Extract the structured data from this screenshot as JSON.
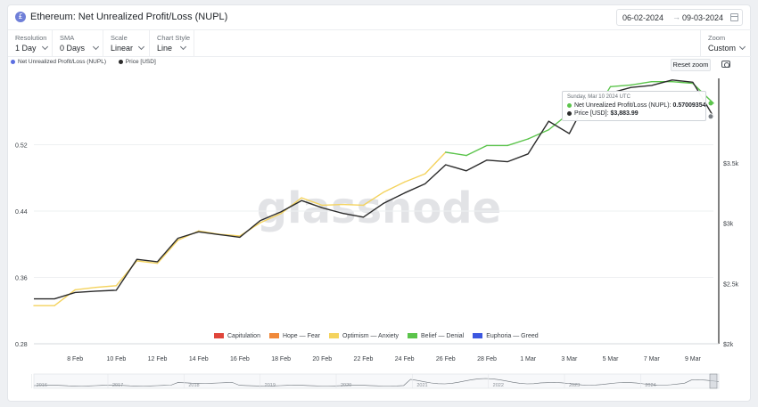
{
  "header": {
    "title": "Ethereum: Net Unrealized Profit/Loss (NUPL)",
    "logo_glyph": "£",
    "date_from": "06-02-2024",
    "date_arrow": "→",
    "date_to": "09-03-2024"
  },
  "toolbar": {
    "resolution": {
      "label": "Resolution",
      "value": "1 Day"
    },
    "sma": {
      "label": "SMA",
      "value": "0 Days"
    },
    "scale": {
      "label": "Scale",
      "value": "Linear"
    },
    "chart_style": {
      "label": "Chart Style",
      "value": "Line"
    },
    "zoom": {
      "label": "Zoom",
      "value": "Custom"
    }
  },
  "legend": {
    "nupl": {
      "label": "Net Unrealized Profit/Loss (NUPL)",
      "color": "#5b6ee1"
    },
    "price": {
      "label": "Price [USD]",
      "color": "#2b2b2b"
    }
  },
  "reset_zoom_label": "Reset zoom",
  "watermark": "glassnode",
  "tooltip": {
    "date": "Sunday, Mar 10 2024 UTC",
    "nupl_label": "Net Unrealized Profit/Loss (NUPL):",
    "nupl_value": "0.57009354",
    "price_label": "Price [USD]:",
    "price_value": "$3,883.99"
  },
  "zones": [
    {
      "label": "Capitulation",
      "color": "#e0453a"
    },
    {
      "label": "Hope — Fear",
      "color": "#f0893a"
    },
    {
      "label": "Optimism — Anxiety",
      "color": "#f4d35e"
    },
    {
      "label": "Belief — Denial",
      "color": "#5bc44b"
    },
    {
      "label": "Euphoria — Greed",
      "color": "#3c57e0"
    }
  ],
  "navigator": {
    "years": [
      "2016",
      "2017",
      "2018",
      "2019",
      "2020",
      "2021",
      "2022",
      "2023",
      "2024"
    ]
  },
  "chart_data": {
    "type": "line",
    "x": [
      "6 Feb",
      "7 Feb",
      "8 Feb",
      "9 Feb",
      "10 Feb",
      "11 Feb",
      "12 Feb",
      "13 Feb",
      "14 Feb",
      "15 Feb",
      "16 Feb",
      "17 Feb",
      "18 Feb",
      "19 Feb",
      "20 Feb",
      "21 Feb",
      "22 Feb",
      "23 Feb",
      "24 Feb",
      "25 Feb",
      "26 Feb",
      "27 Feb",
      "28 Feb",
      "29 Feb",
      "1 Mar",
      "2 Mar",
      "3 Mar",
      "4 Mar",
      "5 Mar",
      "6 Mar",
      "7 Mar",
      "8 Mar",
      "9 Mar",
      "10 Mar"
    ],
    "x_tick_labels": [
      "8 Feb",
      "10 Feb",
      "12 Feb",
      "14 Feb",
      "16 Feb",
      "18 Feb",
      "20 Feb",
      "22 Feb",
      "24 Feb",
      "26 Feb",
      "28 Feb",
      "1 Mar",
      "3 Mar",
      "5 Mar",
      "7 Mar",
      "9 Mar"
    ],
    "series": [
      {
        "name": "Net Unrealized Profit/Loss (NUPL)",
        "axis": "left",
        "values": [
          0.326,
          0.326,
          0.345,
          0.348,
          0.35,
          0.38,
          0.377,
          0.405,
          0.416,
          0.412,
          0.41,
          0.426,
          0.437,
          0.456,
          0.447,
          0.448,
          0.447,
          0.463,
          0.475,
          0.485,
          0.511,
          0.507,
          0.519,
          0.519,
          0.527,
          0.538,
          0.558,
          0.55,
          0.59,
          0.592,
          0.596,
          0.596,
          0.594,
          0.57
        ]
      },
      {
        "name": "Price [USD]",
        "axis": "right",
        "values": [
          2372,
          2372,
          2425,
          2436,
          2444,
          2700,
          2680,
          2875,
          2928,
          2905,
          2883,
          3022,
          3093,
          3187,
          3127,
          3081,
          3050,
          3166,
          3250,
          3326,
          3484,
          3434,
          3522,
          3509,
          3574,
          3845,
          3742,
          4068,
          4079,
          4125,
          4142,
          4187,
          4168,
          3884
        ]
      }
    ],
    "y_left": {
      "ticks": [
        "0.28",
        "0.36",
        "0.44",
        "0.52"
      ],
      "ylim": [
        0.28,
        0.6
      ]
    },
    "y_right": {
      "ticks": [
        "$2k",
        "$2.5k",
        "$3k",
        "$3.5k"
      ],
      "ylim": [
        2000,
        4200
      ]
    },
    "zone_colors": {
      "optimism_anxiety": "#f4d35e",
      "belief_denial": "#5bc44b"
    },
    "zone_boundary": 0.5,
    "grid": true
  }
}
